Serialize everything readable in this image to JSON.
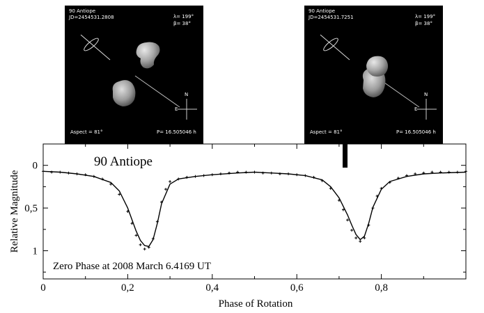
{
  "chart_data": {
    "type": "scatter",
    "title": "90 Antiope",
    "xlabel": "Phase of Rotation",
    "ylabel": "Relative Magnitude",
    "xlim": [
      0,
      1
    ],
    "ylim": [
      1.33,
      -0.25
    ],
    "y_inverted": true,
    "x_ticks": [
      0,
      0.2,
      0.4,
      0.6,
      0.8
    ],
    "x_tick_labels": [
      "0",
      "0,2",
      "0,4",
      "0,6",
      "0,8"
    ],
    "y_ticks": [
      0,
      0.5,
      1
    ],
    "y_tick_labels": [
      "0",
      "0,5",
      "1"
    ],
    "grid": false,
    "annotation": "Zero Phase at 2008 March 6.4169 UT",
    "series": [
      {
        "style": "points",
        "x": [
          0.0,
          0.02,
          0.04,
          0.06,
          0.08,
          0.1,
          0.12,
          0.14,
          0.16,
          0.18,
          0.2,
          0.21,
          0.22,
          0.23,
          0.24,
          0.25,
          0.26,
          0.27,
          0.28,
          0.29,
          0.3,
          0.32,
          0.34,
          0.36,
          0.38,
          0.4,
          0.42,
          0.44,
          0.46,
          0.48,
          0.5,
          0.52,
          0.54,
          0.56,
          0.58,
          0.6,
          0.62,
          0.64,
          0.66,
          0.68,
          0.7,
          0.71,
          0.72,
          0.73,
          0.74,
          0.75,
          0.76,
          0.77,
          0.78,
          0.79,
          0.8,
          0.82,
          0.84,
          0.86,
          0.88,
          0.9,
          0.92,
          0.94,
          0.96,
          0.98,
          1.0
        ],
        "y": [
          0.07,
          0.08,
          0.08,
          0.09,
          0.1,
          0.11,
          0.13,
          0.16,
          0.22,
          0.34,
          0.54,
          0.68,
          0.82,
          0.93,
          0.98,
          0.96,
          0.86,
          0.66,
          0.43,
          0.28,
          0.19,
          0.16,
          0.14,
          0.13,
          0.12,
          0.11,
          0.1,
          0.09,
          0.08,
          0.08,
          0.08,
          0.09,
          0.09,
          0.1,
          0.1,
          0.11,
          0.12,
          0.14,
          0.18,
          0.27,
          0.41,
          0.52,
          0.64,
          0.76,
          0.85,
          0.89,
          0.85,
          0.7,
          0.5,
          0.36,
          0.27,
          0.2,
          0.15,
          0.12,
          0.1,
          0.09,
          0.08,
          0.08,
          0.08,
          0.08,
          0.07
        ]
      },
      {
        "style": "line",
        "x": [
          0.0,
          0.04,
          0.08,
          0.12,
          0.16,
          0.18,
          0.2,
          0.22,
          0.23,
          0.24,
          0.25,
          0.26,
          0.27,
          0.28,
          0.3,
          0.32,
          0.36,
          0.4,
          0.46,
          0.5,
          0.54,
          0.58,
          0.62,
          0.66,
          0.68,
          0.7,
          0.72,
          0.73,
          0.74,
          0.75,
          0.76,
          0.77,
          0.78,
          0.8,
          0.82,
          0.86,
          0.9,
          0.94,
          1.0
        ],
        "y": [
          0.07,
          0.08,
          0.1,
          0.13,
          0.2,
          0.3,
          0.5,
          0.77,
          0.88,
          0.94,
          0.95,
          0.87,
          0.68,
          0.45,
          0.22,
          0.16,
          0.13,
          0.11,
          0.09,
          0.08,
          0.09,
          0.1,
          0.12,
          0.17,
          0.25,
          0.38,
          0.58,
          0.7,
          0.81,
          0.87,
          0.83,
          0.68,
          0.49,
          0.28,
          0.19,
          0.13,
          0.1,
          0.09,
          0.08
        ]
      }
    ]
  },
  "insets": [
    {
      "object": "90 Antiope",
      "jd": "JD=2454531.2808",
      "lambda": "λ= 199°",
      "beta": "β=  38°",
      "aspect": "Aspect = 81°",
      "period": "P= 16.505046 h",
      "north": "N",
      "east": "E"
    },
    {
      "object": "90 Antiope",
      "jd": "JD=2454531.7251",
      "lambda": "λ= 199°",
      "beta": "β=  38°",
      "aspect": "Aspect = 81°",
      "period": "P= 16.505046 h",
      "north": "N",
      "east": "E"
    }
  ]
}
